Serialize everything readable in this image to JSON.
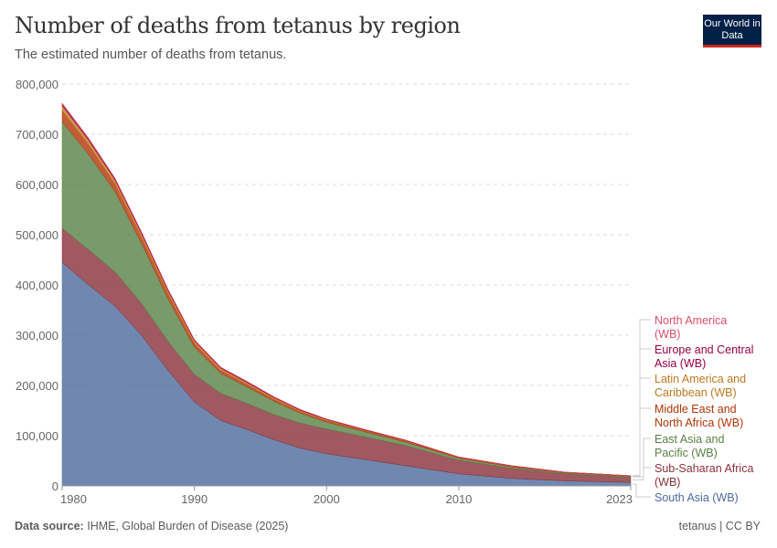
{
  "header": {
    "title": "Number of deaths from tetanus by region",
    "subtitle": "The estimated number of deaths from tetanus.",
    "logo": "Our World in Data"
  },
  "footer": {
    "source_label": "Data source:",
    "source": "IHME, Global Burden of Disease (2025)",
    "right": "tetanus | CC BY"
  },
  "chart_data": {
    "type": "area",
    "stacked": true,
    "title": "Number of deaths from tetanus by region",
    "xlabel": "",
    "ylabel": "",
    "xlim": [
      1980,
      2023
    ],
    "ylim": [
      0,
      800000
    ],
    "x_ticks": [
      "1980",
      "1990",
      "2000",
      "2010",
      "2023"
    ],
    "y_ticks": [
      "0",
      "100,000",
      "200,000",
      "300,000",
      "400,000",
      "500,000",
      "600,000",
      "700,000",
      "800,000"
    ],
    "grid": "horizontal dashed",
    "legend": "right (labels at line ends)",
    "x": [
      1980,
      1982,
      1984,
      1986,
      1988,
      1990,
      1992,
      1994,
      1996,
      1998,
      2000,
      2003,
      2006,
      2010,
      2014,
      2018,
      2023
    ],
    "series": [
      {
        "name": "South Asia (WB)",
        "color": "#4c6a9c",
        "values": [
          445000,
          400000,
          358000,
          300000,
          230000,
          167000,
          130000,
          112000,
          92000,
          75000,
          64000,
          52000,
          40000,
          24000,
          15000,
          10000,
          7000
        ]
      },
      {
        "name": "Sub-Saharan Africa (WB)",
        "color": "#883039",
        "values": [
          68000,
          70000,
          68000,
          63000,
          58000,
          55000,
          54000,
          52000,
          50000,
          50000,
          49000,
          45000,
          40000,
          27000,
          20000,
          14000,
          10000
        ]
      },
      {
        "name": "East Asia and Pacific (WB)",
        "color": "#578145",
        "values": [
          212000,
          190000,
          160000,
          120000,
          85000,
          54000,
          40000,
          33000,
          27000,
          20000,
          14000,
          10000,
          7000,
          4000,
          3000,
          2000,
          2000
        ]
      },
      {
        "name": "Middle East and North Africa (WB)",
        "color": "#b13507",
        "values": [
          22000,
          19000,
          15000,
          12000,
          10000,
          8000,
          6000,
          5000,
          4000,
          3000,
          3000,
          2000,
          2000,
          1000,
          1000,
          500,
          500
        ]
      },
      {
        "name": "Latin America and Caribbean (WB)",
        "color": "#c0781e",
        "values": [
          10000,
          9000,
          8000,
          7000,
          6000,
          5000,
          4000,
          3500,
          3000,
          2500,
          2000,
          1500,
          1200,
          1000,
          800,
          600,
          500
        ]
      },
      {
        "name": "Europe and Central Asia (WB)",
        "color": "#970046",
        "values": [
          4000,
          3500,
          3000,
          3000,
          2500,
          2000,
          2000,
          2000,
          1500,
          1500,
          1000,
          1000,
          800,
          600,
          500,
          400,
          300
        ]
      },
      {
        "name": "North America (WB)",
        "color": "#e04e66",
        "values": [
          1000,
          800,
          700,
          600,
          500,
          400,
          300,
          300,
          300,
          200,
          200,
          200,
          100,
          100,
          100,
          100,
          100
        ]
      }
    ]
  }
}
